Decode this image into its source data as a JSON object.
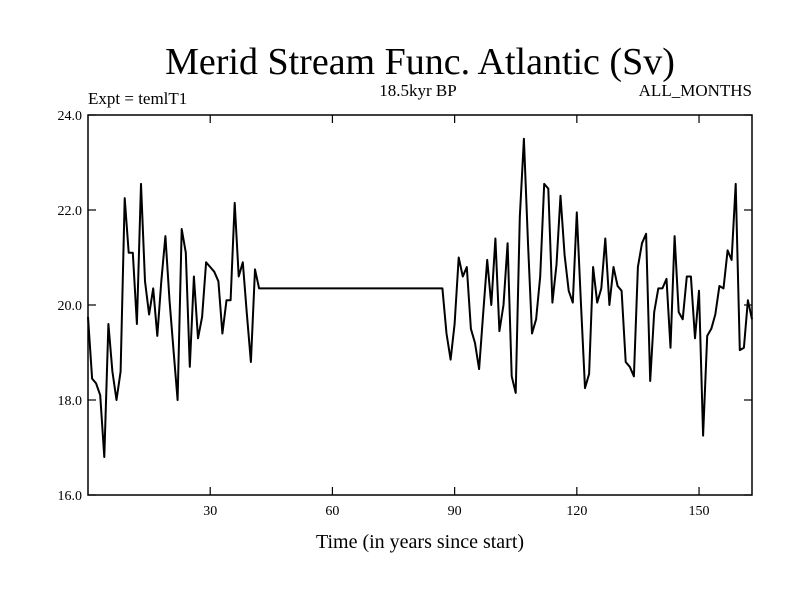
{
  "chart_data": {
    "type": "line",
    "title": "Merid Stream Func. Atlantic (Sv)",
    "left_label": "Expt = temlT1",
    "center_label": "18.5kyr BP",
    "right_label": "ALL_MONTHS",
    "xlabel": "Time (in years since start)",
    "ylabel": "",
    "xlim": [
      0,
      163
    ],
    "ylim": [
      16.0,
      24.0
    ],
    "x_ticks": [
      30,
      60,
      90,
      120,
      150
    ],
    "x_tick_labels": [
      "30",
      "60",
      "90",
      "120",
      "150"
    ],
    "y_ticks": [
      16,
      18,
      20,
      22,
      24
    ],
    "y_tick_labels": [
      "16.0",
      "18.0",
      "20.0",
      "22.0",
      "24.0"
    ],
    "grid": false,
    "series": [
      {
        "color": "#000000",
        "x": [
          0,
          1,
          2,
          3,
          4,
          5,
          6,
          7,
          8,
          9,
          10,
          11,
          12,
          13,
          14,
          15,
          16,
          17,
          18,
          19,
          20,
          21,
          22,
          23,
          24,
          25,
          26,
          27,
          28,
          29,
          30,
          31,
          32,
          33,
          34,
          35,
          36,
          37,
          38,
          39,
          40,
          41,
          42,
          43,
          87,
          88,
          89,
          90,
          91,
          92,
          93,
          94,
          95,
          96,
          97,
          98,
          99,
          100,
          101,
          102,
          103,
          104,
          105,
          106,
          107,
          108,
          109,
          110,
          111,
          112,
          113,
          114,
          115,
          116,
          117,
          118,
          119,
          120,
          121,
          122,
          123,
          124,
          125,
          126,
          127,
          128,
          129,
          130,
          131,
          132,
          133,
          134,
          135,
          136,
          137,
          138,
          139,
          140,
          141,
          142,
          143,
          144,
          145,
          146,
          147,
          148,
          149,
          150,
          151,
          152,
          153,
          154,
          155,
          156,
          157,
          158,
          159,
          160,
          161,
          162,
          163
        ],
        "y": [
          19.75,
          18.45,
          18.35,
          18.1,
          16.8,
          19.6,
          18.6,
          18.0,
          18.6,
          22.25,
          21.1,
          21.1,
          19.6,
          22.55,
          20.5,
          19.8,
          20.35,
          19.35,
          20.5,
          21.45,
          20.1,
          19.05,
          18.0,
          21.6,
          21.1,
          18.7,
          20.6,
          19.3,
          19.75,
          20.9,
          20.8,
          20.7,
          20.5,
          19.4,
          20.1,
          20.1,
          22.15,
          20.6,
          20.9,
          19.8,
          18.8,
          20.75,
          20.35,
          20.35,
          20.35,
          19.4,
          18.85,
          19.6,
          21.0,
          20.6,
          20.8,
          19.5,
          19.2,
          18.65,
          19.8,
          20.95,
          20.0,
          21.4,
          19.45,
          20.0,
          21.3,
          18.5,
          18.15,
          21.85,
          23.5,
          21.3,
          19.4,
          19.7,
          20.6,
          22.55,
          22.45,
          20.05,
          20.85,
          22.3,
          21.05,
          20.3,
          20.05,
          21.95,
          20.05,
          18.25,
          18.55,
          20.8,
          20.05,
          20.35,
          21.4,
          20.0,
          20.8,
          20.4,
          20.3,
          18.8,
          18.7,
          18.5,
          20.8,
          21.3,
          21.5,
          18.4,
          19.85,
          20.35,
          20.35,
          20.55,
          19.1,
          21.45,
          19.85,
          19.7,
          20.6,
          20.6,
          19.3,
          20.3,
          17.25,
          19.35,
          19.5,
          19.8,
          20.4,
          20.35,
          21.15,
          20.95,
          22.55,
          19.05,
          19.1,
          20.1,
          19.7
        ]
      }
    ]
  }
}
